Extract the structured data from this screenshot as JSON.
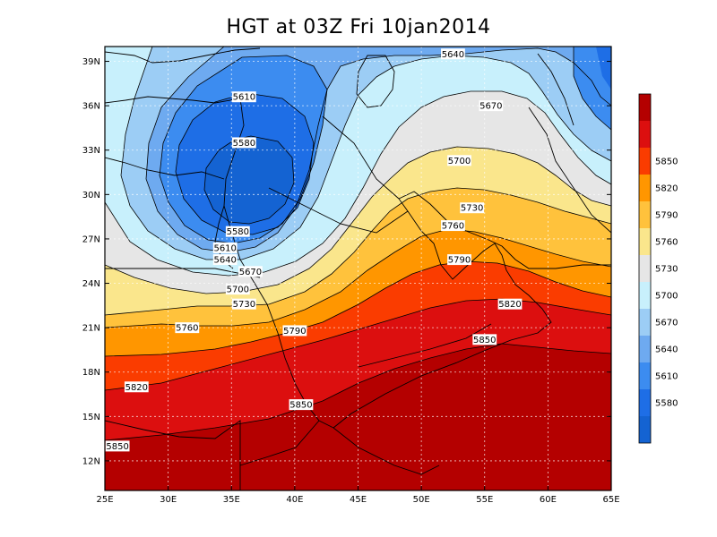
{
  "title": "HGT at 03Z Fri 10jan2014",
  "chart_data": {
    "type": "heatmap",
    "variable": "HGT",
    "lon_range": [
      25,
      65
    ],
    "lat_range": [
      10,
      40
    ],
    "x_ticks": [
      "25E",
      "30E",
      "35E",
      "40E",
      "45E",
      "50E",
      "55E",
      "60E",
      "65E"
    ],
    "y_ticks": [
      "12N",
      "15N",
      "18N",
      "21N",
      "24N",
      "27N",
      "30N",
      "33N",
      "36N",
      "39N"
    ],
    "grid": true,
    "colorbar": {
      "placement": "right",
      "labels": [
        "5580",
        "5610",
        "5640",
        "5670",
        "5700",
        "5730",
        "5760",
        "5790",
        "5820",
        "5850"
      ],
      "colors": [
        "#1463d2",
        "#1e6ee6",
        "#3c8cf0",
        "#6eaaf0",
        "#9ccdf5",
        "#c8f0fc",
        "#e6e6e6",
        "#fae68c",
        "#ffc23c",
        "#ff9600",
        "#fa3c00",
        "#dc0f0f",
        "#b40000"
      ]
    },
    "contour_interval": 30,
    "contour_labels": [
      {
        "value": "5640",
        "lon": 52.5,
        "lat": 39.5
      },
      {
        "value": "5670",
        "lon": 55.5,
        "lat": 36.0
      },
      {
        "value": "5610",
        "lon": 36.0,
        "lat": 36.6
      },
      {
        "value": "5580",
        "lon": 36.0,
        "lat": 33.5
      },
      {
        "value": "5700",
        "lon": 53.0,
        "lat": 32.3
      },
      {
        "value": "5730",
        "lon": 54.0,
        "lat": 29.1
      },
      {
        "value": "5580",
        "lon": 35.5,
        "lat": 27.5
      },
      {
        "value": "5610",
        "lon": 34.5,
        "lat": 26.4
      },
      {
        "value": "5640",
        "lon": 34.5,
        "lat": 25.6
      },
      {
        "value": "5670",
        "lon": 36.5,
        "lat": 24.8
      },
      {
        "value": "5760",
        "lon": 52.5,
        "lat": 27.9
      },
      {
        "value": "5790",
        "lon": 53.0,
        "lat": 25.6
      },
      {
        "value": "5700",
        "lon": 35.5,
        "lat": 23.6
      },
      {
        "value": "5730",
        "lon": 36.0,
        "lat": 22.6
      },
      {
        "value": "5820",
        "lon": 57.0,
        "lat": 22.6
      },
      {
        "value": "5760",
        "lon": 31.5,
        "lat": 21.0
      },
      {
        "value": "5790",
        "lon": 40.0,
        "lat": 20.8
      },
      {
        "value": "5850",
        "lon": 55.0,
        "lat": 20.2
      },
      {
        "value": "5820",
        "lon": 27.5,
        "lat": 17.0
      },
      {
        "value": "5850",
        "lon": 40.5,
        "lat": 15.8
      },
      {
        "value": "5850",
        "lon": 26.0,
        "lat": 13.0
      }
    ]
  }
}
